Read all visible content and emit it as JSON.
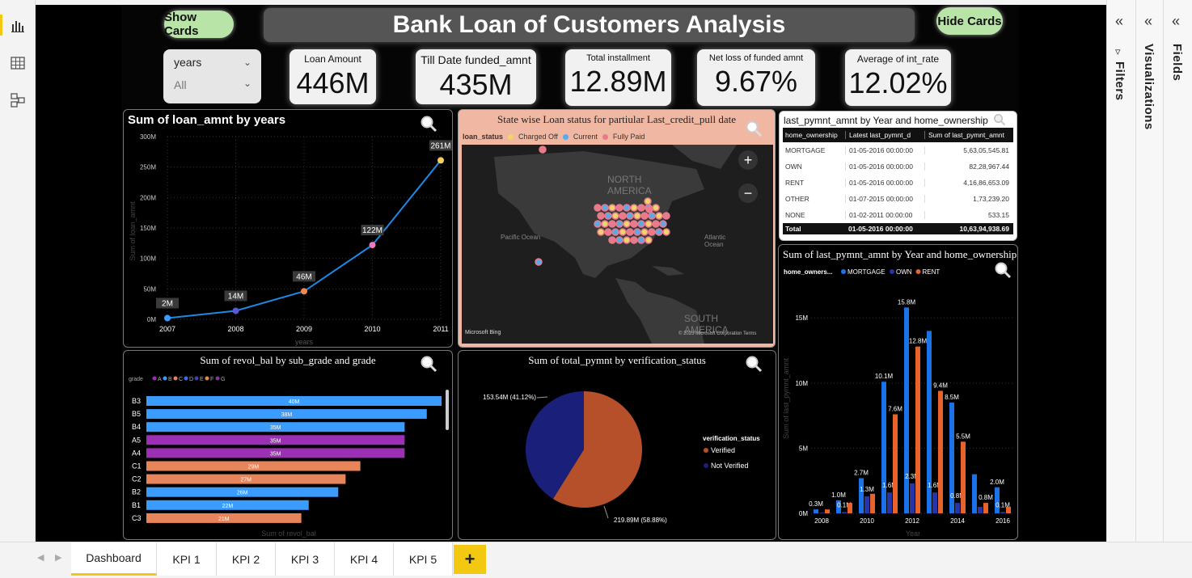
{
  "buttons": {
    "show_cards": "Show Cards",
    "hide_cards": "Hide Cards"
  },
  "title": "Bank Loan of Customers Analysis",
  "slicer": {
    "field": "years",
    "value": "All"
  },
  "cards": [
    {
      "label": "Loan Amount",
      "value": "446M"
    },
    {
      "label": "Till Date funded_amnt",
      "value": "435M"
    },
    {
      "label": "Total installment",
      "value": "12.89M"
    },
    {
      "label": "Net loss of funded amnt",
      "value": "9.67%"
    },
    {
      "label": "Average of int_rate",
      "value": "12.02%"
    }
  ],
  "line_chart": {
    "title": "Sum of loan_amnt by years",
    "xlabel": "years",
    "ylabel": "Sum of loan_amnt"
  },
  "map": {
    "title": "State wise Loan status for partiular Last_credit_pull date",
    "legend_title": "loan_status",
    "legend": [
      "Charged Off",
      "Current",
      "Fully Paid"
    ],
    "labels": [
      "NORTH AMERICA",
      "Pacific Ocean",
      "Atlantic Ocean",
      "SOUTH AMERICA"
    ],
    "attribution": "© 2023 Microsoft Corporation  Terms",
    "bing": "Microsoft Bing"
  },
  "table": {
    "title": "last_pymnt_amnt by Year and home_ownership",
    "columns": [
      "home_ownership",
      "Latest last_pymnt_d",
      "Sum of last_pymnt_amnt"
    ],
    "rows": [
      [
        "MORTGAGE",
        "01-05-2016 00:00:00",
        "5,63,05,545.81"
      ],
      [
        "OWN",
        "01-05-2016 00:00:00",
        "82,28,967.44"
      ],
      [
        "RENT",
        "01-05-2016 00:00:00",
        "4,16,86,653.09"
      ],
      [
        "OTHER",
        "01-07-2015 00:00:00",
        "1,73,239.20"
      ],
      [
        "NONE",
        "01-02-2011 00:00:00",
        "533.15"
      ]
    ],
    "total": [
      "Total",
      "01-05-2016 00:00:00",
      "10,63,94,938.69"
    ]
  },
  "bar_chart": {
    "title": "Sum of revol_bal by sub_grade and grade",
    "legend_title": "grade",
    "xlabel": "Sum of revol_bal"
  },
  "pie_chart": {
    "title": "Sum of total_pymnt by verification_status",
    "legend_title": "verification_status"
  },
  "column_chart": {
    "title": "Sum of last_pymnt_amnt by Year and home_ownership",
    "legend_title": "home_owners...",
    "xlabel": "Year",
    "ylabel": "Sum of last_pymnt_amnt"
  },
  "panes": {
    "filters": "Filters",
    "visualizations": "Visualizations",
    "fields": "Fields"
  },
  "tabs": [
    "Dashboard",
    "KPI 1",
    "KPI 2",
    "KPI 3",
    "KPI 4",
    "KPI 5"
  ],
  "tab_add": "+",
  "colors": {
    "accent": "#f2c811",
    "button_green": "#b9e4a8",
    "line": "#1e88e5",
    "purple": "#9b30b4",
    "orange": "#e8845a",
    "blue": "#3b9cff",
    "navy": "#1a1f7a",
    "rust": "#b5502a",
    "mortgage": "#1a73e8",
    "own": "#2534a8",
    "rent": "#e8632a"
  },
  "chart_data": [
    {
      "type": "line",
      "title": "Sum of loan_amnt by years",
      "xlabel": "years",
      "ylabel": "Sum of loan_amnt",
      "categories": [
        "2007",
        "2008",
        "2009",
        "2010",
        "2011"
      ],
      "values": [
        2,
        14,
        46,
        122,
        261
      ],
      "labels": [
        "2M",
        "14M",
        "46M",
        "122M",
        "261M"
      ],
      "yticks": [
        "0M",
        "50M",
        "100M",
        "150M",
        "200M",
        "250M",
        "300M"
      ],
      "ylim": [
        0,
        300
      ]
    },
    {
      "type": "bar",
      "title": "Sum of revol_bal by sub_grade and grade",
      "legend": [
        "A",
        "B",
        "C",
        "D",
        "E",
        "F",
        "G"
      ],
      "categories": [
        "B3",
        "B5",
        "B4",
        "A5",
        "A4",
        "C1",
        "C2",
        "B2",
        "B1",
        "C3"
      ],
      "grades": [
        "B",
        "B",
        "B",
        "A",
        "A",
        "C",
        "C",
        "B",
        "B",
        "C"
      ],
      "values": [
        40,
        38,
        35,
        35,
        35,
        29,
        27,
        26,
        22,
        21
      ],
      "labels": [
        "40M",
        "38M",
        "35M",
        "35M",
        "35M",
        "29M",
        "27M",
        "26M",
        "22M",
        "21M"
      ],
      "xlim": [
        0,
        40
      ]
    },
    {
      "type": "pie",
      "title": "Sum of total_pymnt by verification_status",
      "series": [
        {
          "name": "Verified",
          "value": 219.89,
          "label": "219.89M (58.88%)"
        },
        {
          "name": "Not Verified",
          "value": 153.54,
          "label": "153.54M (41.12%)"
        }
      ]
    },
    {
      "type": "bar",
      "title": "Sum of last_pymnt_amnt by Year and home_ownership",
      "categories": [
        "2008",
        "2009",
        "2010",
        "2011",
        "2012",
        "2013",
        "2014",
        "2015",
        "2016"
      ],
      "xticks": [
        "2008",
        "2010",
        "2012",
        "2014",
        "2016"
      ],
      "yticks": [
        "0M",
        "5M",
        "10M",
        "15M"
      ],
      "ylim": [
        0,
        17
      ],
      "series": [
        {
          "name": "MORTGAGE",
          "values": [
            0.3,
            1.0,
            2.7,
            10.1,
            15.8,
            14.0,
            8.5,
            3.0,
            2.0
          ],
          "labels": [
            "0.3M",
            "1.0M",
            "2.7M",
            "10.1M",
            "15.8M",
            "",
            "8.5M",
            "",
            "2.0M"
          ]
        },
        {
          "name": "OWN",
          "values": [
            0.05,
            0.1,
            1.3,
            1.6,
            2.3,
            1.6,
            0.8,
            0.5,
            0.1
          ],
          "labels": [
            "",
            "0.1M",
            "1.3M",
            "1.6M",
            "2.3M",
            "1.6M",
            "0.8M",
            "",
            "0.1M"
          ]
        },
        {
          "name": "RENT",
          "values": [
            0.3,
            0.8,
            1.5,
            7.6,
            12.8,
            9.4,
            5.5,
            0.8,
            0.5
          ],
          "labels": [
            "",
            "",
            "",
            "7.6M",
            "12.8M",
            "9.4M",
            "5.5M",
            "0.8M",
            ""
          ]
        }
      ]
    }
  ]
}
